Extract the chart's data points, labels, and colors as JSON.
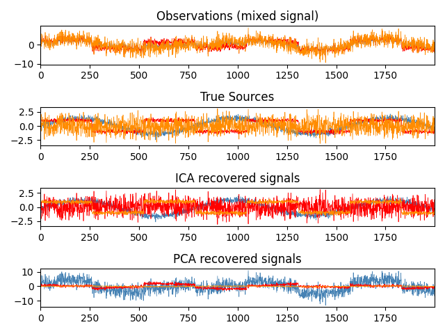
{
  "n_samples": 2000,
  "titles": [
    "Observations (mixed signal)",
    "True Sources",
    "ICA recovered signals",
    "PCA recovered signals"
  ],
  "colors": [
    "steelblue",
    "red",
    "darkorange"
  ],
  "figsize": [
    6.4,
    4.8
  ],
  "dpi": 100
}
